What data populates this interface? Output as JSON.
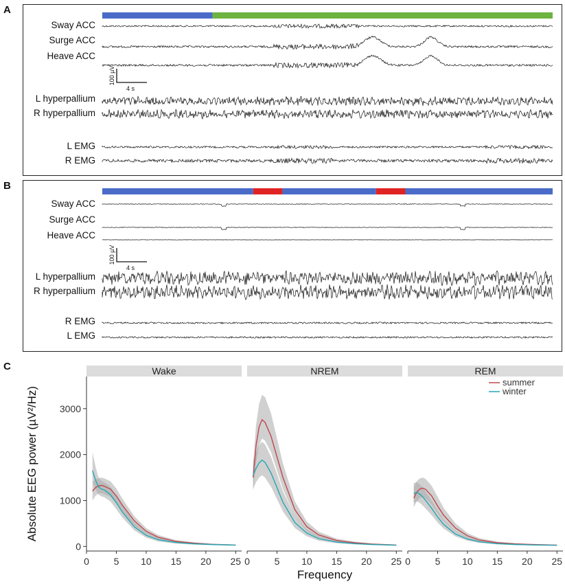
{
  "panels": {
    "a": {
      "letter": "A"
    },
    "b": {
      "letter": "B"
    },
    "c": {
      "letter": "C"
    }
  },
  "colors": {
    "wake_bar": "#4A6CC8",
    "nrem_bar": "#6CB33F",
    "rem_bar": "#E02424",
    "summer": "#C0474E",
    "winter": "#22A7B5",
    "band": "#AAAAAA",
    "facet_strip": "#DCDCDC"
  },
  "trace_panel_a": {
    "state_bar": [
      {
        "state": "wake",
        "from": 0.0,
        "to": 0.245
      },
      {
        "state": "nrem",
        "from": 0.245,
        "to": 1.0
      }
    ],
    "traces": [
      {
        "label": "Sway ACC",
        "kind": "acc",
        "amp": 1.2
      },
      {
        "label": "Surge ACC",
        "kind": "acc",
        "amp": 1.5
      },
      {
        "label": "Heave ACC",
        "kind": "acc",
        "amp": 1.5
      },
      {
        "label": "L hyperpallium",
        "kind": "eeg",
        "amp": 5
      },
      {
        "label": "R hyperpallium",
        "kind": "eeg",
        "amp": 5
      },
      {
        "label": "L EMG",
        "kind": "emg",
        "amp": 1.4
      },
      {
        "label": "R EMG",
        "kind": "emg",
        "amp": 2.2
      }
    ],
    "scale_bar": {
      "y_label": "100 µV",
      "x_label": "4 s"
    }
  },
  "trace_panel_b": {
    "state_bar": [
      {
        "state": "wake",
        "from": 0.0,
        "to": 0.335
      },
      {
        "state": "rem",
        "from": 0.335,
        "to": 0.4
      },
      {
        "state": "wake",
        "from": 0.4,
        "to": 0.608
      },
      {
        "state": "rem",
        "from": 0.608,
        "to": 0.673
      },
      {
        "state": "wake",
        "from": 0.673,
        "to": 1.0
      }
    ],
    "traces": [
      {
        "label": "Sway ACC",
        "kind": "flat",
        "amp": 0.4
      },
      {
        "label": "Surge ACC",
        "kind": "flat",
        "amp": 0.4
      },
      {
        "label": "Heave ACC",
        "kind": "flat",
        "amp": 0.2
      },
      {
        "label": "L hyperpallium",
        "kind": "eeg",
        "amp": 8
      },
      {
        "label": "R hyperpallium",
        "kind": "eeg",
        "amp": 8
      },
      {
        "label": "R EMG",
        "kind": "emg",
        "amp": 1.2
      },
      {
        "label": "L EMG",
        "kind": "emg",
        "amp": 1.2
      }
    ],
    "scale_bar": {
      "y_label": "100 µV",
      "x_label": "4 s"
    }
  },
  "chart_data": {
    "type": "line",
    "facets": [
      "Wake",
      "NREM",
      "REM"
    ],
    "xlabel": "Frequency",
    "ylabel": "Absolute EEG power (µV²/Hz)",
    "xlim": [
      0,
      26
    ],
    "ylim": [
      -100,
      3700
    ],
    "x_ticks": [
      0,
      5,
      10,
      15,
      20,
      25
    ],
    "y_ticks": [
      0,
      1000,
      2000,
      3000
    ],
    "legend_position": "top-right",
    "x": [
      1,
      1.5,
      2,
      2.5,
      3,
      4,
      5,
      6,
      8,
      10,
      12,
      15,
      18,
      21,
      25
    ],
    "series": [
      {
        "name": "summer",
        "facet": "Wake",
        "values": [
          1200,
          1280,
          1320,
          1330,
          1310,
          1250,
          1100,
          900,
          560,
          330,
          200,
          110,
          70,
          45,
          30
        ],
        "lower": [
          1000,
          1100,
          1150,
          1160,
          1140,
          1080,
          940,
          760,
          460,
          260,
          150,
          80,
          50,
          30,
          20
        ],
        "upper": [
          1400,
          1460,
          1490,
          1500,
          1480,
          1420,
          1260,
          1040,
          660,
          400,
          250,
          140,
          90,
          60,
          40
        ]
      },
      {
        "name": "winter",
        "facet": "Wake",
        "values": [
          1650,
          1450,
          1300,
          1250,
          1230,
          1130,
          950,
          750,
          430,
          240,
          145,
          85,
          55,
          40,
          28
        ],
        "lower": [
          1400,
          1250,
          1130,
          1090,
          1070,
          980,
          810,
          630,
          350,
          190,
          110,
          60,
          40,
          28,
          20
        ],
        "upper": [
          2050,
          1750,
          1500,
          1430,
          1400,
          1300,
          1100,
          880,
          520,
          300,
          185,
          110,
          70,
          52,
          36
        ]
      },
      {
        "name": "summer",
        "facet": "NREM",
        "values": [
          1500,
          2200,
          2600,
          2760,
          2700,
          2400,
          1950,
          1500,
          800,
          430,
          250,
          130,
          80,
          50,
          30
        ],
        "lower": [
          1200,
          1800,
          2200,
          2350,
          2300,
          2050,
          1650,
          1250,
          650,
          330,
          190,
          95,
          60,
          38,
          22
        ],
        "upper": [
          1800,
          2650,
          3100,
          3300,
          3250,
          2900,
          2350,
          1800,
          980,
          540,
          320,
          170,
          105,
          65,
          40
        ]
      },
      {
        "name": "winter",
        "facet": "NREM",
        "values": [
          1550,
          1700,
          1820,
          1880,
          1830,
          1600,
          1280,
          960,
          520,
          290,
          170,
          95,
          60,
          40,
          25
        ],
        "lower": [
          1250,
          1400,
          1500,
          1550,
          1500,
          1300,
          1030,
          760,
          400,
          220,
          125,
          70,
          45,
          30,
          18
        ],
        "upper": [
          1850,
          2050,
          2200,
          2280,
          2220,
          1950,
          1580,
          1200,
          660,
          370,
          220,
          125,
          80,
          52,
          34
        ]
      },
      {
        "name": "summer",
        "facet": "REM",
        "values": [
          1050,
          1180,
          1250,
          1270,
          1240,
          1100,
          880,
          680,
          400,
          230,
          140,
          80,
          55,
          40,
          28
        ],
        "lower": [
          850,
          980,
          1050,
          1070,
          1040,
          910,
          720,
          550,
          320,
          180,
          105,
          60,
          40,
          28,
          20
        ],
        "upper": [
          1300,
          1420,
          1480,
          1500,
          1470,
          1320,
          1080,
          840,
          500,
          290,
          180,
          105,
          70,
          52,
          36
        ]
      },
      {
        "name": "winter",
        "facet": "REM",
        "values": [
          1150,
          1180,
          1140,
          1080,
          1000,
          830,
          640,
          480,
          270,
          160,
          100,
          60,
          42,
          32,
          24
        ],
        "lower": [
          950,
          980,
          950,
          890,
          820,
          680,
          520,
          390,
          215,
          125,
          78,
          46,
          32,
          24,
          18
        ],
        "upper": [
          1380,
          1400,
          1350,
          1280,
          1190,
          1000,
          780,
          590,
          335,
          200,
          128,
          78,
          55,
          42,
          30
        ]
      }
    ]
  }
}
